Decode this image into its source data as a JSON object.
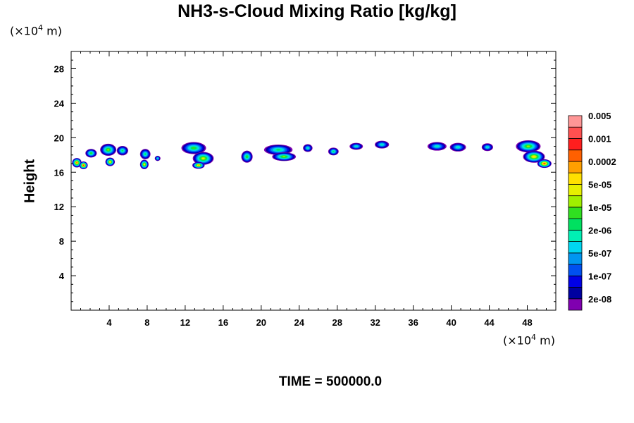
{
  "chart_data": {
    "type": "heatmap",
    "title": "NH3-s-Cloud Mixing Ratio [kg/kg]",
    "ylabel": "Height",
    "y_unit": "(×10",
    "y_unit_exp": "4",
    "y_unit_tail": " m)",
    "x_unit": "(×10",
    "x_unit_exp": "4",
    "x_unit_tail": " m)",
    "time_label": "TIME = 500000.0",
    "xlim": [
      0,
      51
    ],
    "ylim": [
      0,
      30
    ],
    "x_ticks": [
      "4",
      "8",
      "12",
      "16",
      "20",
      "24",
      "28",
      "32",
      "36",
      "40",
      "44",
      "48"
    ],
    "x_tick_values": [
      4,
      8,
      12,
      16,
      20,
      24,
      28,
      32,
      36,
      40,
      44,
      48
    ],
    "y_ticks": [
      "4",
      "8",
      "12",
      "16",
      "20",
      "24",
      "28"
    ],
    "y_tick_values": [
      4,
      8,
      12,
      16,
      20,
      24,
      28
    ],
    "colorbar": {
      "colors": [
        "#8000b0",
        "#0000a0",
        "#0000e6",
        "#0050f0",
        "#0096f0",
        "#00d6f0",
        "#00f0b4",
        "#00e060",
        "#30e020",
        "#a0f000",
        "#e6f000",
        "#ffe000",
        "#ffa000",
        "#ff6000",
        "#ff1e1e",
        "#ff5050",
        "#ff9696"
      ],
      "labels": [
        "2e-08",
        "1e-07",
        "5e-07",
        "2e-06",
        "1e-05",
        "5e-05",
        "0.0002",
        "0.001",
        "0.005"
      ],
      "label_values": [
        2e-08,
        1e-07,
        5e-07,
        2e-06,
        1e-05,
        5e-05,
        0.0002,
        0.001,
        0.005
      ]
    },
    "clouds": [
      {
        "x": 0.6,
        "y": 17.1,
        "w": 1.0,
        "h": 1.1,
        "peak": 13
      },
      {
        "x": 1.3,
        "y": 16.8,
        "w": 0.9,
        "h": 0.9,
        "peak": 14
      },
      {
        "x": 2.1,
        "y": 18.2,
        "w": 1.2,
        "h": 1.0,
        "peak": 8
      },
      {
        "x": 3.9,
        "y": 18.6,
        "w": 1.7,
        "h": 1.4,
        "peak": 9
      },
      {
        "x": 4.1,
        "y": 17.2,
        "w": 1.0,
        "h": 1.0,
        "peak": 11
      },
      {
        "x": 5.4,
        "y": 18.5,
        "w": 1.2,
        "h": 1.1,
        "peak": 7
      },
      {
        "x": 7.8,
        "y": 18.1,
        "w": 1.1,
        "h": 1.2,
        "peak": 7
      },
      {
        "x": 7.7,
        "y": 16.9,
        "w": 0.9,
        "h": 1.1,
        "peak": 11
      },
      {
        "x": 9.1,
        "y": 17.6,
        "w": 0.6,
        "h": 0.6,
        "peak": 6
      },
      {
        "x": 12.9,
        "y": 18.8,
        "w": 2.6,
        "h": 1.4,
        "peak": 8
      },
      {
        "x": 13.9,
        "y": 17.6,
        "w": 2.2,
        "h": 1.5,
        "peak": 10
      },
      {
        "x": 13.4,
        "y": 16.8,
        "w": 1.3,
        "h": 0.8,
        "peak": 12
      },
      {
        "x": 18.5,
        "y": 17.8,
        "w": 1.2,
        "h": 1.4,
        "peak": 8
      },
      {
        "x": 21.8,
        "y": 18.6,
        "w": 3.0,
        "h": 1.2,
        "peak": 7
      },
      {
        "x": 22.4,
        "y": 17.8,
        "w": 2.5,
        "h": 1.0,
        "peak": 9
      },
      {
        "x": 24.9,
        "y": 18.8,
        "w": 1.0,
        "h": 0.9,
        "peak": 6
      },
      {
        "x": 27.6,
        "y": 18.4,
        "w": 1.1,
        "h": 0.9,
        "peak": 7
      },
      {
        "x": 30.0,
        "y": 19.0,
        "w": 1.4,
        "h": 0.8,
        "peak": 6
      },
      {
        "x": 32.7,
        "y": 19.2,
        "w": 1.5,
        "h": 0.9,
        "peak": 6
      },
      {
        "x": 38.5,
        "y": 19.0,
        "w": 2.0,
        "h": 1.0,
        "peak": 6
      },
      {
        "x": 40.7,
        "y": 18.9,
        "w": 1.7,
        "h": 1.0,
        "peak": 6
      },
      {
        "x": 43.8,
        "y": 18.9,
        "w": 1.2,
        "h": 0.9,
        "peak": 6
      },
      {
        "x": 48.1,
        "y": 19.0,
        "w": 2.6,
        "h": 1.4,
        "peak": 9
      },
      {
        "x": 48.7,
        "y": 17.8,
        "w": 2.3,
        "h": 1.4,
        "peak": 11
      },
      {
        "x": 49.8,
        "y": 17.0,
        "w": 1.5,
        "h": 1.0,
        "peak": 14
      }
    ]
  }
}
